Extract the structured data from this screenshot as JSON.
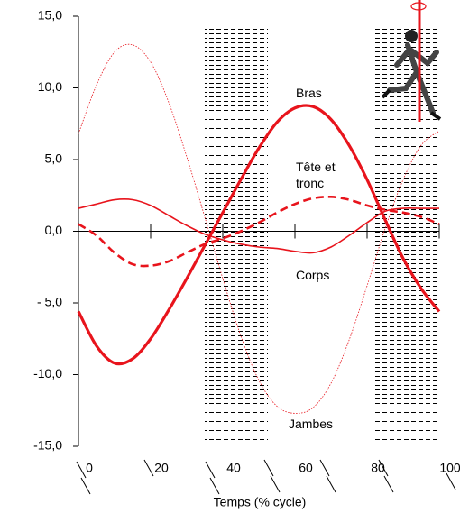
{
  "chart_data": {
    "type": "line",
    "x_label": "Temps (% cycle)",
    "x": [
      0,
      5,
      10,
      15,
      20,
      25,
      30,
      35,
      40,
      45,
      50,
      55,
      60,
      65,
      70,
      75,
      80,
      85,
      90,
      95,
      100
    ],
    "xlim": [
      0,
      100
    ],
    "xticks": [
      0,
      20,
      40,
      60,
      80,
      100
    ],
    "ylim": [
      -15,
      15
    ],
    "yticks": [
      {
        "value": -15,
        "label": "-15,0"
      },
      {
        "value": -10,
        "label": "-10,0"
      },
      {
        "value": -5,
        "label": "- 5,0"
      },
      {
        "value": 0,
        "label": "0,0"
      },
      {
        "value": 5,
        "label": "5,0"
      },
      {
        "value": 10,
        "label": "10,0"
      },
      {
        "value": 15,
        "label": "15,0"
      }
    ],
    "shaded_ranges": [
      [
        35,
        52.5
      ],
      [
        82,
        100
      ]
    ],
    "series": [
      {
        "name": "Bras",
        "color": "#e8141c",
        "line_style": "thick",
        "values": [
          -5.6,
          -8.0,
          -9.2,
          -8.9,
          -7.5,
          -5.5,
          -3.3,
          -1.0,
          1.3,
          3.6,
          5.8,
          7.6,
          8.6,
          8.7,
          7.8,
          6.0,
          3.6,
          0.8,
          -1.9,
          -4.0,
          -5.6
        ]
      },
      {
        "name": "Tête et tronc",
        "color": "#e8141c",
        "line_style": "dashed",
        "values": [
          0.5,
          -0.3,
          -1.5,
          -2.3,
          -2.4,
          -2.1,
          -1.5,
          -0.9,
          -0.5,
          0.0,
          0.6,
          1.3,
          1.9,
          2.3,
          2.4,
          2.2,
          1.8,
          1.5,
          1.3,
          1.0,
          0.5
        ]
      },
      {
        "name": "Corps",
        "color": "#e8141c",
        "line_style": "thin",
        "values": [
          1.6,
          1.9,
          2.2,
          2.2,
          1.8,
          1.1,
          0.4,
          -0.2,
          -0.6,
          -0.9,
          -1.1,
          -1.2,
          -1.4,
          -1.5,
          -1.1,
          -0.3,
          0.6,
          1.4,
          1.6,
          1.6,
          1.6
        ]
      },
      {
        "name": "Jambes",
        "color": "#e8141c",
        "line_style": "dotted",
        "values": [
          6.8,
          10.2,
          12.5,
          13.0,
          11.8,
          9.0,
          5.2,
          1.0,
          -3.3,
          -7.3,
          -10.4,
          -12.2,
          -12.7,
          -12.3,
          -10.6,
          -7.6,
          -3.8,
          0.2,
          3.6,
          6.0,
          7.0
        ]
      }
    ]
  }
}
